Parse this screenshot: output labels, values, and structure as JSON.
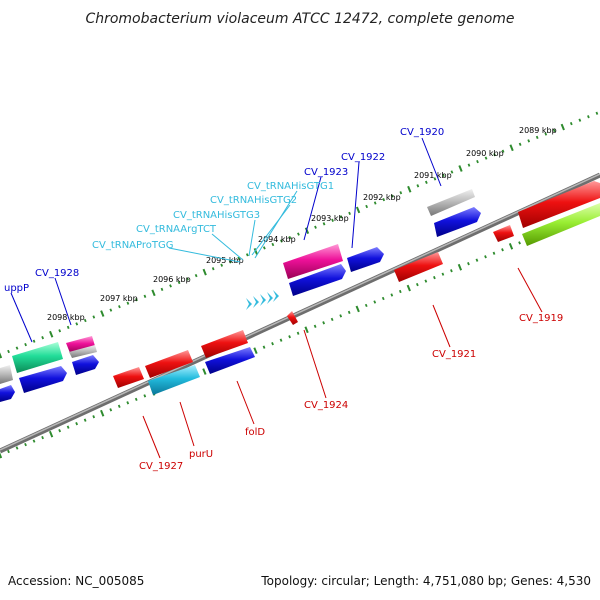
{
  "title": "Chromobacterium violaceum ATCC 12472, complete genome",
  "footer": {
    "accession": "Accession: NC_005085",
    "summary": "Topology: circular; Length: 4,751,080 bp; Genes: 4,530"
  },
  "colors": {
    "backbone": "#8a8a8a",
    "tick_dots": "#2e8b2e",
    "label_forward": "#0000cc",
    "label_reverse": "#cc0000",
    "label_trna": "#33bbdd"
  },
  "scale_labels": [
    "2089 kbp",
    "2090 kbp",
    "2091 kbp",
    "2092 kbp",
    "2093 kbp",
    "2094 kbp",
    "2095 kbp",
    "2096 kbp",
    "2097 kbp",
    "2098 kbp"
  ],
  "features": {
    "forward": [
      {
        "label": "CV_1920",
        "color": "#1111dd"
      },
      {
        "label": "CV_1922",
        "color": "#1111dd"
      },
      {
        "label": "CV_1923",
        "color": "#ee1199"
      },
      {
        "label": "CV_1928",
        "color": "#ee1199"
      },
      {
        "label": "uppP",
        "color": "#22ee99"
      }
    ],
    "trna": [
      {
        "label": "CV_tRNAHisGTG1"
      },
      {
        "label": "CV_tRNAHisGTG2"
      },
      {
        "label": "CV_tRNAHisGTG3"
      },
      {
        "label": "CV_tRNAArgTCT"
      },
      {
        "label": "CV_tRNAProTGG"
      }
    ],
    "reverse": [
      {
        "label": "CV_1919",
        "color": "#ee1111"
      },
      {
        "label": "CV_1921",
        "color": "#ee1111"
      },
      {
        "label": "CV_1924",
        "color": "#ee1111"
      },
      {
        "label": "folD",
        "color": "#ee1111"
      },
      {
        "label": "purU",
        "color": "#22bbdd"
      },
      {
        "label": "CV_1927",
        "color": "#ee1111"
      }
    ]
  }
}
